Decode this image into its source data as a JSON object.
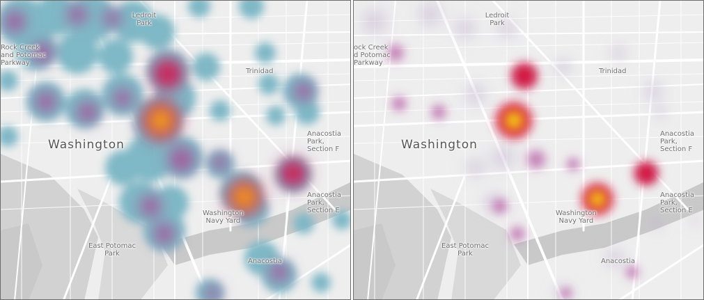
{
  "map": {
    "colors": {
      "land": "#eeeeee",
      "water": "#c8c8c8",
      "road": "#ffffff",
      "halo": "#7fb8c6",
      "hot_low": "#a04f8f",
      "hot_mid": "#d7173d",
      "hot_high": "#f5f31a"
    }
  },
  "panels": [
    {
      "id": "left",
      "labels": {
        "ledroit": "Ledroit",
        "ledroit_park": "Park",
        "rock_creek_1": "Rock Creek",
        "rock_creek_2": "and Potomac",
        "rock_creek_3": "Parkway",
        "trinidad": "Trinidad",
        "washington": "Washington",
        "anacostia_park_1": "Anacostia",
        "anacostia_park_2": "Park,",
        "anacostia_park_3": "Section F",
        "anacostia_park_e_1": "Anacostia",
        "anacostia_park_e_2": "Park,",
        "anacostia_park_e_3": "Section E",
        "navy_yard_1": "Washington",
        "navy_yard_2": "Navy Yard",
        "east_potomac_1": "East Potomac",
        "east_potomac_2": "Park",
        "anacostia": "Anacostia"
      }
    },
    {
      "id": "right",
      "labels": {
        "ledroit": "Ledroit",
        "ledroit_park": "Park",
        "rock_creek_1": "ock Creek",
        "rock_creek_2": "d Potomac",
        "rock_creek_3": "Parkway",
        "trinidad": "Trinidad",
        "washington": "Washington",
        "anacostia_park_1": "Anacostia",
        "anacostia_park_2": "Park,",
        "anacostia_park_3": "Section F",
        "anacostia_park_e_1": "Anacostia",
        "anacostia_park_e_2": "Park,",
        "anacostia_park_e_3": "Section E",
        "navy_yard_1": "Washington",
        "navy_yard_2": "Navy Yard",
        "east_potomac_1": "East Potomac",
        "east_potomac_2": "Park",
        "anacostia": "Anacostia"
      }
    }
  ]
}
